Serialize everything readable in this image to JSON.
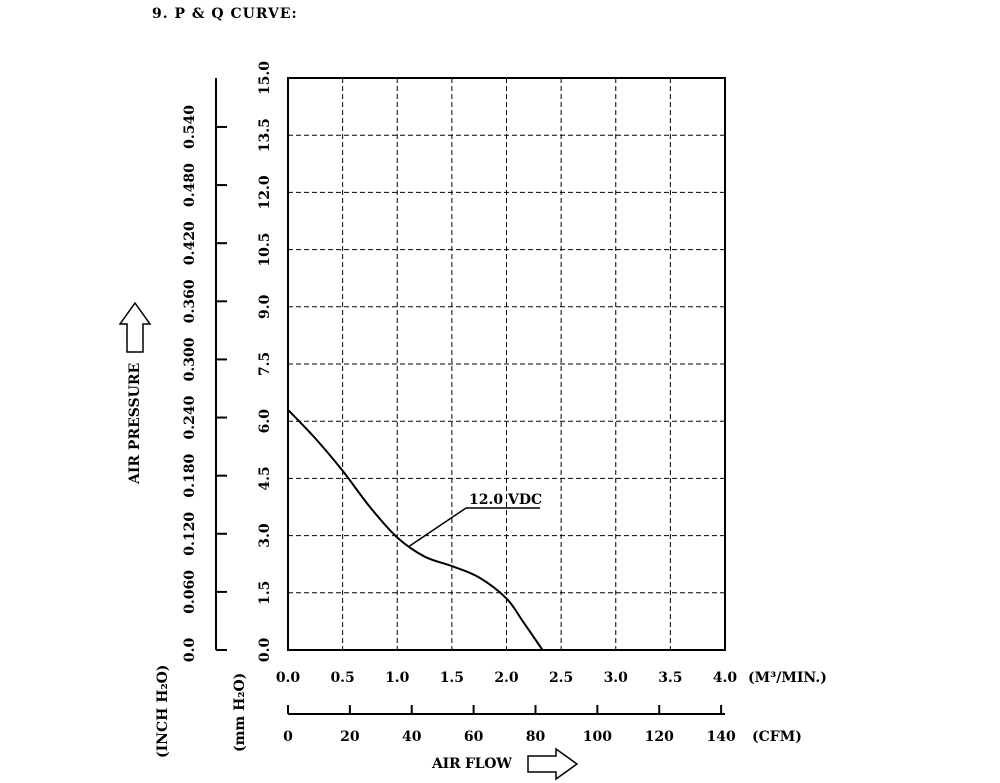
{
  "heading": "9. P & Q CURVE:",
  "chart_data": {
    "type": "line",
    "xlim": [
      0,
      4
    ],
    "ylim_mm": [
      0,
      15
    ],
    "grid": true,
    "x_ticks_m3": [
      "0.0",
      "0.5",
      "1.0",
      "1.5",
      "2.0",
      "2.5",
      "3.0",
      "3.5",
      "4.0"
    ],
    "x_ticks_cfm": [
      "0",
      "20",
      "40",
      "60",
      "80",
      "100",
      "120",
      "140"
    ],
    "y_ticks_mm": [
      "0.0",
      "1.5",
      "3.0",
      "4.5",
      "6.0",
      "7.5",
      "9.0",
      "10.5",
      "12.0",
      "13.5",
      "15.0"
    ],
    "y_ticks_inch": [
      "0.0",
      "0.060",
      "0.120",
      "0.180",
      "0.240",
      "0.300",
      "0.360",
      "0.420",
      "0.480",
      "0.540"
    ],
    "x_unit_m3": "(M³/MIN.)",
    "x_unit_cfm": "(CFM)",
    "y_unit_mm": "(mm H₂O)",
    "y_unit_inch": "(INCH H₂O)",
    "xlabel": "AIR FLOW",
    "ylabel": "AIR PRESSURE",
    "series": [
      {
        "name": "12.0 VDC",
        "x": [
          0.0,
          0.25,
          0.5,
          0.75,
          1.0,
          1.25,
          1.5,
          1.75,
          2.0,
          2.15,
          2.33
        ],
        "y": [
          6.3,
          5.55,
          4.7,
          3.75,
          2.95,
          2.45,
          2.2,
          1.9,
          1.35,
          0.75,
          0.0
        ]
      }
    ]
  }
}
